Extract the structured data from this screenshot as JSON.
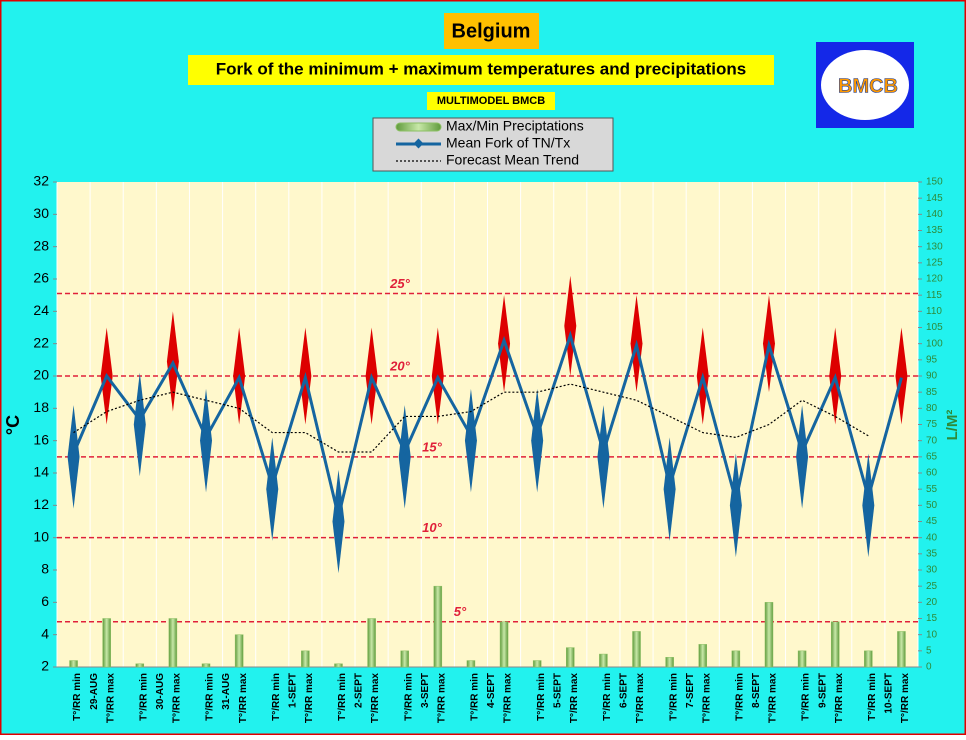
{
  "chart_data": {
    "type": "fork",
    "title": "Belgium",
    "subtitle": "Fork of the minimum + maximum temperatures and precipitations",
    "source": "MULTIMODEL BMCB",
    "logo": "BMCB",
    "y_label": "°C",
    "y2_label": "L/M²",
    "categories": [
      "T°/RR min",
      "T°/RR max",
      "T°/RR min",
      "T°/RR max",
      "T°/RR min",
      "T°/RR max",
      "T°/RR min",
      "T°/RR max",
      "T°/RR min",
      "T°/RR max",
      "T°/RR min",
      "T°/RR max",
      "T°/RR min",
      "T°/RR max",
      "T°/RR min",
      "T°/RR max",
      "T°/RR min",
      "T°/RR max",
      "T°/RR min",
      "T°/RR max",
      "T°/RR min",
      "T°/RR max",
      "T°/RR min",
      "T°/RR max",
      "T°/RR min",
      "T°/RR max"
    ],
    "date_labels": [
      "29-AUG",
      "30-AUG",
      "31-AUG",
      "1-SEPT",
      "2-SEPT",
      "3-SEPT",
      "4-SEPT",
      "5-SEPT",
      "6-SEPT",
      "7-SEPT",
      "8-SEPT",
      "9-SEPT",
      "10-SEPT"
    ],
    "series": [
      {
        "name": "Max/Min Preciptations",
        "color": "#8cc063",
        "axis": "y2",
        "values": [
          2,
          15,
          1,
          15,
          1,
          10,
          0,
          5,
          1,
          15,
          5,
          25,
          2,
          14,
          2,
          6,
          4,
          11,
          3,
          7,
          5,
          20,
          5,
          14,
          5,
          11
        ]
      },
      {
        "name": "Mean Fork of TN/Tx",
        "color": "#1565a0",
        "values": [
          15.2,
          20,
          17.3,
          20.8,
          16.2,
          19.9,
          13.2,
          19.9,
          11.3,
          19.9,
          15.3,
          19.9,
          16.3,
          22.2,
          16.3,
          22.5,
          15.3,
          21.9,
          13.2,
          19.9,
          12.3,
          21.9,
          15.3,
          19.9,
          12.5,
          19.9
        ]
      },
      {
        "name": "Forecast Mean Trend",
        "color": "#000000",
        "dotted": true,
        "values": [
          16.5,
          17.8,
          18.5,
          19,
          18.5,
          18,
          16.5,
          16.5,
          15.3,
          15.3,
          17.5,
          17.5,
          17.8,
          19,
          19,
          19.5,
          19,
          18.5,
          17.5,
          16.5,
          16.2,
          17,
          18.5,
          17.5,
          16.3,
          null
        ]
      }
    ],
    "spread_low": [
      11.8,
      17,
      13.8,
      17.8,
      12.8,
      17,
      9.8,
      17,
      7.8,
      17,
      11.8,
      17,
      12.8,
      19,
      12.8,
      20,
      11.8,
      19,
      9.8,
      17,
      8.8,
      19,
      11.8,
      17,
      8.8,
      17
    ],
    "spread_high": [
      18.2,
      23,
      20.2,
      24,
      19.2,
      23,
      16.2,
      23,
      14.2,
      23,
      18.2,
      23,
      19.2,
      25,
      19.2,
      26.2,
      18.2,
      25,
      16.2,
      23,
      15.2,
      25,
      18.2,
      23,
      15.2,
      23
    ],
    "min_color": "#1565a0",
    "max_color": "#dd0000",
    "references": [
      {
        "value": 25.1,
        "label": "25°"
      },
      {
        "value": 20,
        "label": "20°"
      },
      {
        "value": 15,
        "label": "15°"
      },
      {
        "value": 10,
        "label": "10°"
      },
      {
        "value": 4.8,
        "label": "5°"
      }
    ],
    "ylim": [
      2,
      32
    ],
    "yticks": [
      2,
      4,
      6,
      8,
      10,
      12,
      14,
      16,
      18,
      20,
      22,
      24,
      26,
      28,
      30,
      32
    ],
    "y2lim": [
      0,
      150
    ],
    "y2ticks": [
      0,
      5,
      10,
      15,
      20,
      25,
      30,
      35,
      40,
      45,
      50,
      55,
      60,
      65,
      70,
      75,
      80,
      85,
      90,
      95,
      100,
      105,
      110,
      115,
      120,
      125,
      130,
      135,
      140,
      145,
      150
    ],
    "grid": true
  }
}
